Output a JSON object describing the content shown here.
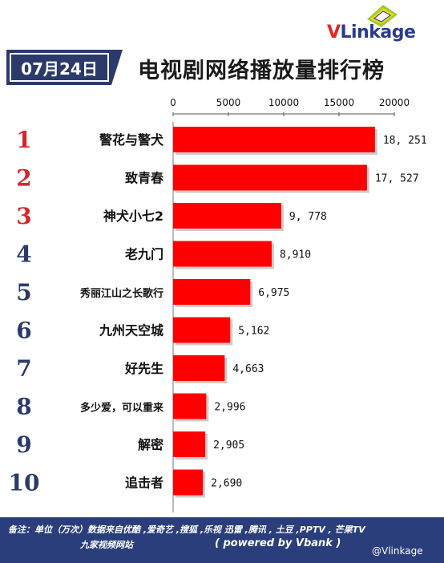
{
  "brand": {
    "logo_v": "V",
    "logo_rest": "Linkage"
  },
  "header": {
    "date": "07月24日",
    "title": "电视剧网络播放量排行榜"
  },
  "chart_data": {
    "type": "bar",
    "orientation": "horizontal",
    "xlim": [
      0,
      20000
    ],
    "xticks": [
      "0",
      "5000",
      "10000",
      "15000",
      "20000"
    ],
    "ranks": [
      "1",
      "2",
      "3",
      "4",
      "5",
      "6",
      "7",
      "8",
      "9",
      "10"
    ],
    "categories": [
      "警花与警犬",
      "致青春",
      "神犬小七2",
      "老九门",
      "秀丽江山之长歌行",
      "九州天空城",
      "好先生",
      "多少爱，可以重来",
      "解密",
      "追击者"
    ],
    "values": [
      18251,
      17527,
      9778,
      8910,
      6975,
      5162,
      4663,
      2996,
      2905,
      2690
    ],
    "value_labels": [
      "18, 251",
      "17, 527",
      "9, 778",
      "8,910",
      "6,975",
      "5,162",
      "4,663",
      "2,996",
      "2,905",
      "2,690"
    ],
    "bar_color": "#ff0000",
    "rank_colors": [
      "#d7262b",
      "#d7262b",
      "#d7262b",
      "#2b3a6b",
      "#2b3a6b",
      "#2b3a6b",
      "#2b3a6b",
      "#2b3a6b",
      "#2b3a6b",
      "#2b3a6b"
    ],
    "grid": false
  },
  "footer": {
    "note_line1": "备注：单位（万次）数据来自优酷 ,爱奇艺 ,搜狐 ,乐视  迅雷 ,腾讯 , 土豆 ,PPTV , 芒果TV",
    "note_line2": "九家视频网站",
    "powered": "( powered by Vbank )",
    "handle": "@Vlinkage"
  },
  "colors": {
    "footer_bg": "#2a3e7c",
    "date_bg": "#2b3a6b",
    "accent_red": "#e8231f",
    "brand_blue": "#2b3a8f"
  }
}
